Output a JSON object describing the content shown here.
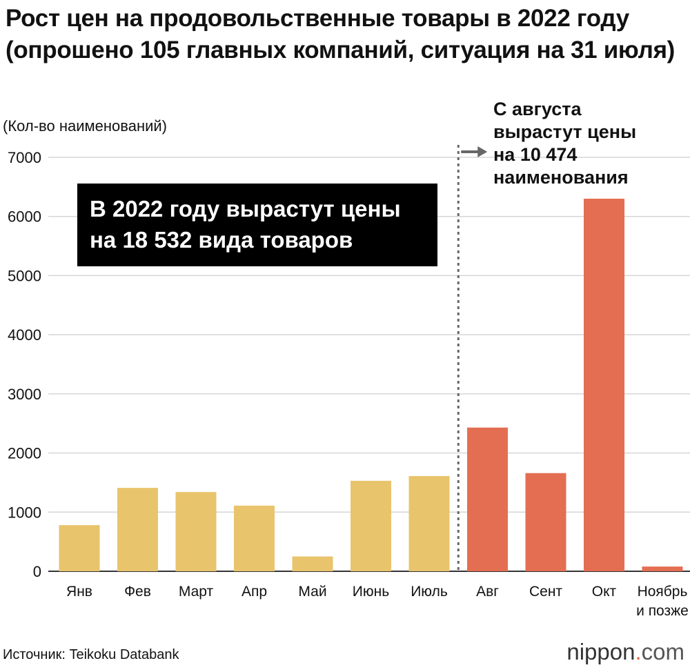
{
  "title": "Рост цен на продовольственные товары в 2022 году (опрошено 105 главных компаний, ситуация на 31 июля)",
  "units_label": "(Кол-во наименований)",
  "callout": {
    "line1": "В 2022 году вырастут цены",
    "line2": "на 18 532 вида товаров"
  },
  "future_note": {
    "line1": "С августа",
    "line2": "вырастут цены",
    "line3": "на 10 474",
    "line4": "наименования"
  },
  "source": "Источник: Teikoku Databank",
  "logo": {
    "name": "nippon",
    "dot": ".",
    "tld": "com"
  },
  "colors": {
    "past": "#e8c46c",
    "future": "#e46e52",
    "grid": "#d6d6d6",
    "axis": "#333333",
    "divider": "#666666"
  },
  "chart_data": {
    "type": "bar",
    "title": "Рост цен на продовольственные товары в 2022 году (опрошено 105 главных компаний, ситуация на 31 июля)",
    "ylabel": "(Кол-во наименований)",
    "xlabel": "",
    "ylim": [
      0,
      7000
    ],
    "yticks": [
      0,
      1000,
      2000,
      3000,
      4000,
      5000,
      6000,
      7000
    ],
    "grid": true,
    "categories": [
      "Янв",
      "Фев",
      "Март",
      "Апр",
      "Май",
      "Июнь",
      "Июль",
      "Авг",
      "Сент",
      "Окт",
      "Ноябрь и позже"
    ],
    "category_lines": [
      [
        "Янв"
      ],
      [
        "Фев"
      ],
      [
        "Март"
      ],
      [
        "Апр"
      ],
      [
        "Май"
      ],
      [
        "Июнь"
      ],
      [
        "Июль"
      ],
      [
        "Авг"
      ],
      [
        "Сент"
      ],
      [
        "Окт"
      ],
      [
        "Ноябрь",
        "и позже"
      ]
    ],
    "values": [
      780,
      1410,
      1340,
      1110,
      250,
      1530,
      1610,
      2430,
      1660,
      6300,
      80
    ],
    "period": [
      "past",
      "past",
      "past",
      "past",
      "past",
      "past",
      "past",
      "future",
      "future",
      "future",
      "future"
    ],
    "divider_after_index": 6
  }
}
